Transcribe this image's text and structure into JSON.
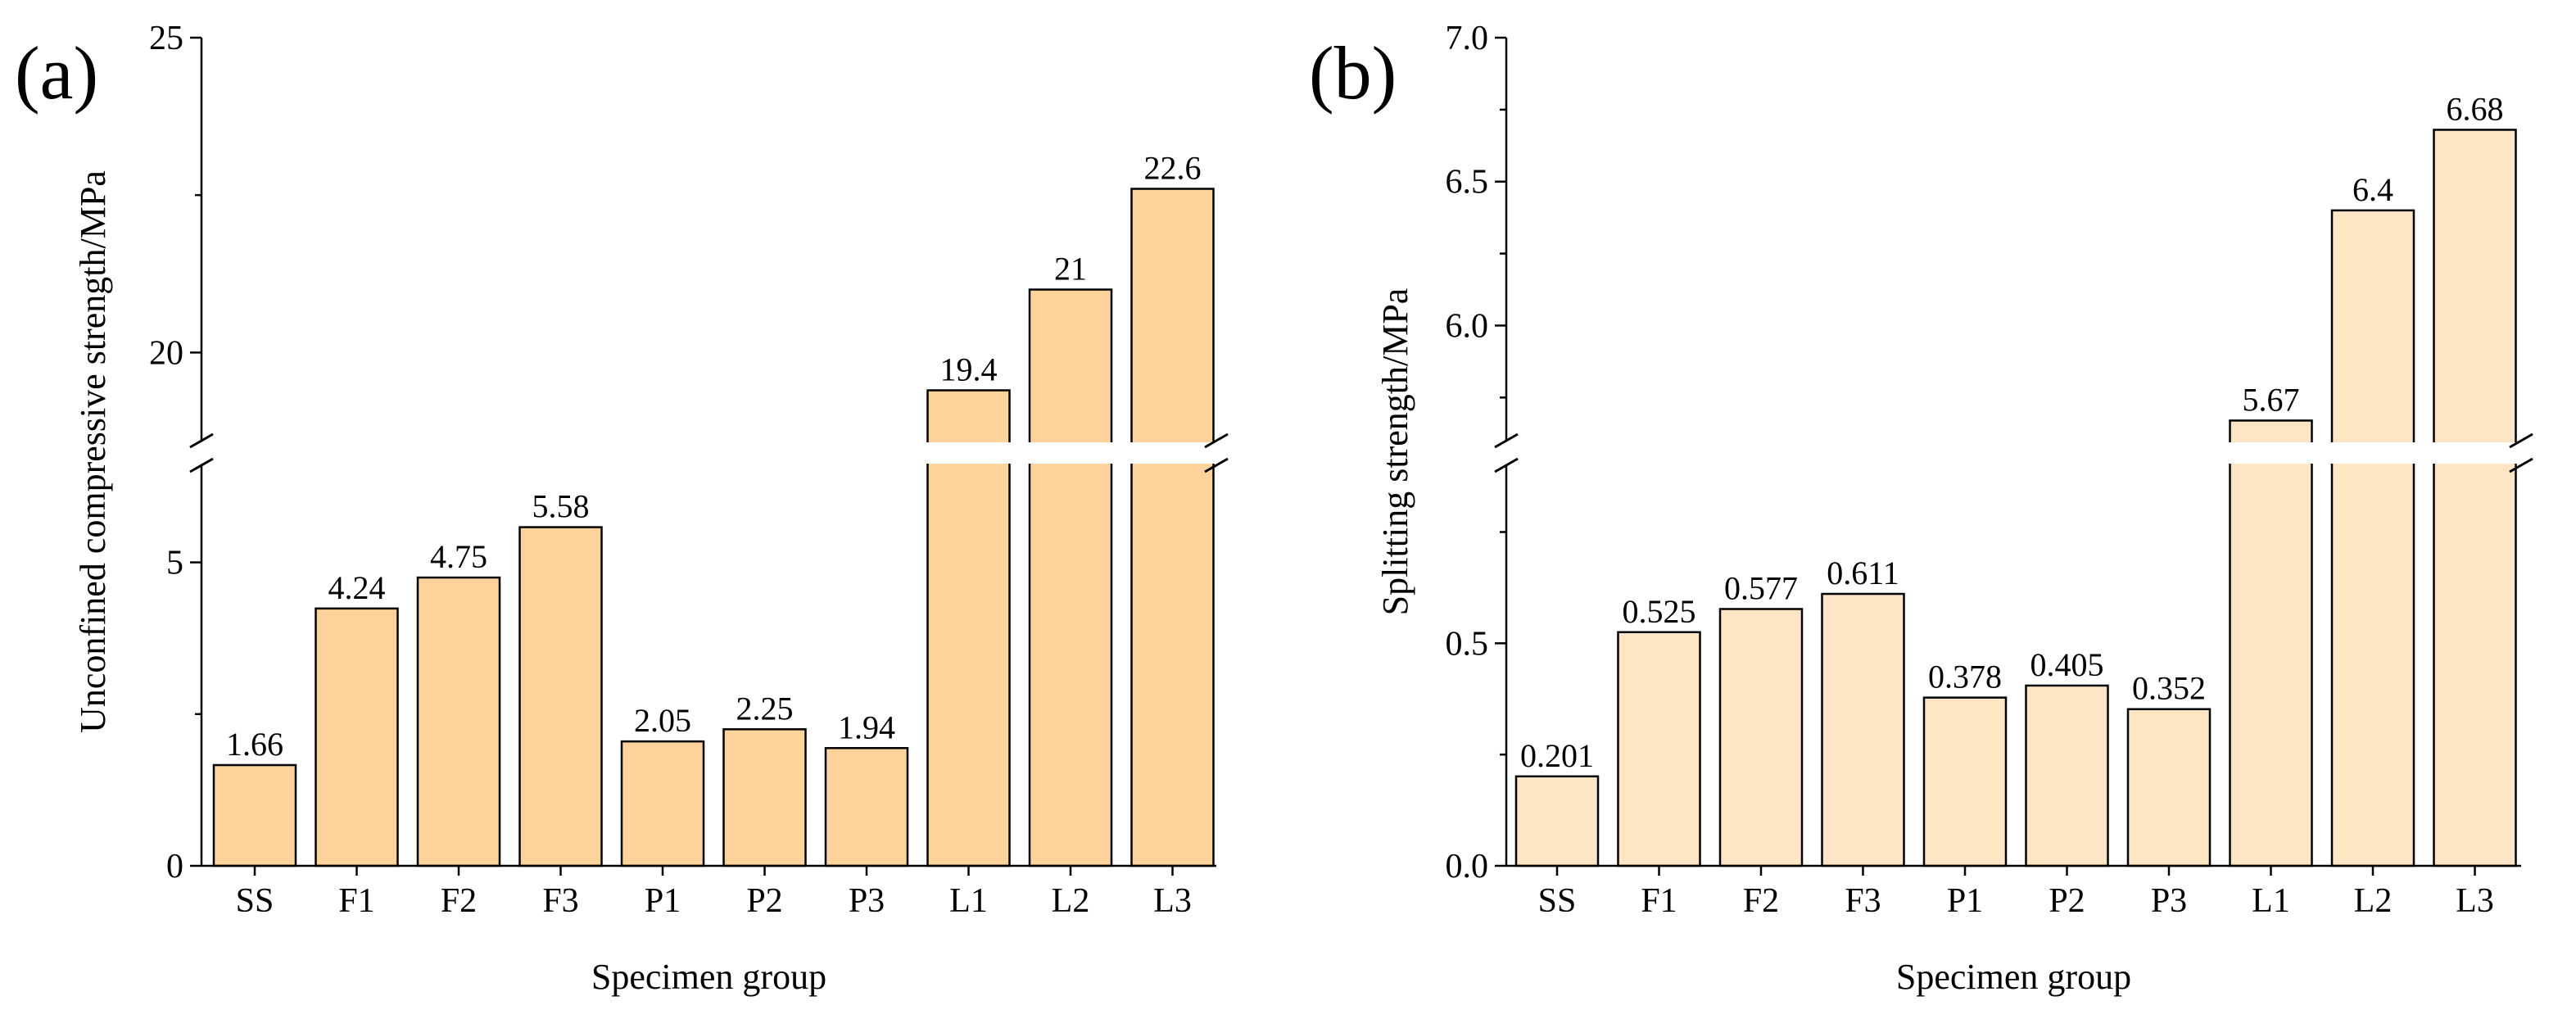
{
  "chart_data": [
    {
      "panel": "(a)",
      "type": "bar",
      "categories": [
        "SS",
        "F1",
        "F2",
        "F3",
        "P1",
        "P2",
        "P3",
        "L1",
        "L2",
        "L3"
      ],
      "values": [
        1.66,
        4.24,
        4.75,
        5.58,
        2.05,
        2.25,
        1.94,
        19.4,
        21,
        22.6
      ],
      "value_labels": [
        "1.66",
        "4.24",
        "4.75",
        "5.58",
        "2.05",
        "2.25",
        "1.94",
        "19.4",
        "21",
        "22.6"
      ],
      "xlabel": "Specimen group",
      "ylabel": "Unconfined compressive strength/MPa",
      "axis_break": true,
      "lower_ylim": [
        0,
        6.6
      ],
      "upper_ylim": [
        18.6,
        25
      ],
      "lower_ticks": [
        0,
        5
      ],
      "lower_tick_labels": [
        "0",
        "5"
      ],
      "upper_ticks": [
        20,
        25
      ],
      "upper_tick_labels": [
        "20",
        "25"
      ],
      "bar_color": "#fdd39b"
    },
    {
      "panel": "(b)",
      "type": "bar",
      "categories": [
        "SS",
        "F1",
        "F2",
        "F3",
        "P1",
        "P2",
        "P3",
        "L1",
        "L2",
        "L3"
      ],
      "values": [
        0.201,
        0.525,
        0.577,
        0.611,
        0.378,
        0.405,
        0.352,
        5.67,
        6.4,
        6.68
      ],
      "value_labels": [
        "0.201",
        "0.525",
        "0.577",
        "0.611",
        "0.378",
        "0.405",
        "0.352",
        "5.67",
        "6.4",
        "6.68"
      ],
      "xlabel": "Specimen group",
      "ylabel": "Splitting strength/MPa",
      "axis_break": true,
      "lower_ylim": [
        0,
        0.9
      ],
      "upper_ylim": [
        5.6,
        7.0
      ],
      "lower_ticks": [
        0.0,
        0.5
      ],
      "lower_tick_labels": [
        "0.0",
        "0.5"
      ],
      "upper_ticks": [
        6.0,
        6.5,
        7.0
      ],
      "upper_tick_labels": [
        "6.0",
        "6.5",
        "7.0"
      ],
      "bar_color": "#fee6c5"
    }
  ]
}
